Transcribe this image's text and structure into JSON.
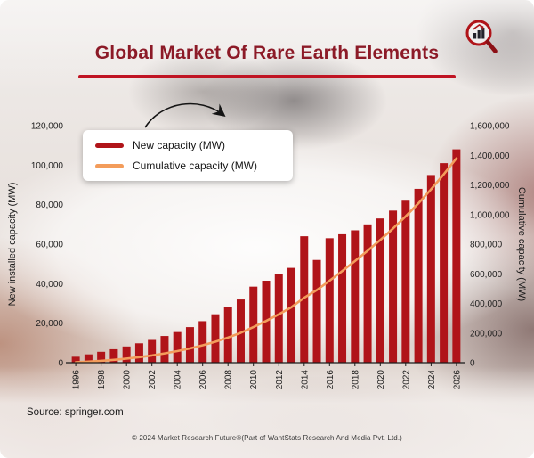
{
  "header": {
    "title": "Global Market Of Rare Earth Elements"
  },
  "legend": {
    "items": [
      {
        "label": "New capacity (MW)"
      },
      {
        "label": "Cumulative capacity (MW)"
      }
    ]
  },
  "axes": {
    "left_label": "New installed capacity (MW)",
    "right_label": "Cumulative capacity (MW)",
    "left_ticks": [
      "0",
      "20,000",
      "40,000",
      "60,000",
      "80,000",
      "100,000",
      "120,000"
    ],
    "right_ticks": [
      "0",
      "200,000",
      "400,000",
      "600,000",
      "800,000",
      "1,000,000",
      "1,200,000",
      "1,400,000",
      "1,600,000"
    ]
  },
  "chart_data": {
    "type": "bar",
    "title": "Global Market Of Rare Earth Elements",
    "x": [
      1996,
      1997,
      1998,
      1999,
      2000,
      2001,
      2002,
      2003,
      2004,
      2005,
      2006,
      2007,
      2008,
      2009,
      2010,
      2011,
      2012,
      2013,
      2014,
      2015,
      2016,
      2017,
      2018,
      2019,
      2020,
      2021,
      2022,
      2023,
      2024,
      2025,
      2026
    ],
    "x_tick_step": 2,
    "series": [
      {
        "name": "New capacity (MW)",
        "type": "bar",
        "axis": "left",
        "color": "#B01419",
        "values": [
          3000,
          4200,
          5500,
          6800,
          8200,
          9800,
          11500,
          13500,
          15500,
          18000,
          21000,
          24500,
          28000,
          32000,
          38500,
          41500,
          45000,
          48000,
          64000,
          52000,
          63000,
          65000,
          67000,
          70000,
          73000,
          77000,
          82000,
          88000,
          95000,
          101000,
          108000
        ]
      },
      {
        "name": "Cumulative capacity (MW)",
        "type": "line",
        "axis": "right",
        "color": "#F39C5B",
        "values": [
          3000,
          7200,
          12700,
          19500,
          27700,
          37500,
          49000,
          62500,
          78000,
          96000,
          117000,
          141500,
          169500,
          201500,
          240000,
          281500,
          326500,
          374500,
          438500,
          490500,
          553500,
          618500,
          685500,
          755500,
          828500,
          905500,
          987500,
          1075500,
          1170500,
          1271500,
          1379500
        ]
      }
    ],
    "left_axis": {
      "label": "New installed capacity (MW)",
      "range": [
        0,
        120000
      ],
      "tick_step": 20000
    },
    "right_axis": {
      "label": "Cumulative capacity (MW)",
      "range": [
        0,
        1600000
      ],
      "tick_step": 200000
    },
    "grid": false,
    "legend_position": "top-left"
  },
  "source": "Source: springer.com",
  "footer": "© 2024 Market Research Future®(Part of WantStats Research And Media Pvt. Ltd.)"
}
